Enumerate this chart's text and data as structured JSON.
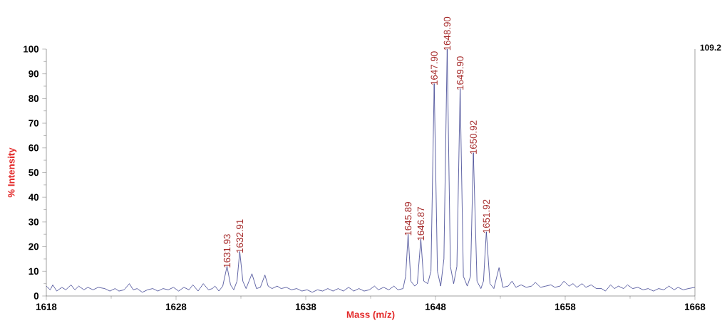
{
  "chart_data": {
    "type": "line",
    "xlabel": "Mass (m/z)",
    "ylabel": "% Intensity",
    "xlim": [
      1618,
      1668
    ],
    "ylim": [
      0,
      100
    ],
    "xticks": [
      1618,
      1628,
      1638,
      1648,
      1658,
      1668
    ],
    "yticks": [
      0,
      10,
      20,
      30,
      40,
      50,
      60,
      70,
      80,
      90,
      100
    ],
    "series": [
      {
        "color": "#3a3f8f",
        "x": [
          1618,
          1618.3,
          1618.5,
          1618.8,
          1619.2,
          1619.5,
          1619.9,
          1620.2,
          1620.5,
          1620.9,
          1621.2,
          1621.6,
          1622.0,
          1622.5,
          1622.9,
          1623.3,
          1623.6,
          1624.0,
          1624.4,
          1624.7,
          1625.0,
          1625.4,
          1625.8,
          1626.2,
          1626.6,
          1627.0,
          1627.4,
          1627.8,
          1628.2,
          1628.6,
          1629.0,
          1629.3,
          1629.7,
          1630.1,
          1630.5,
          1630.8,
          1631.0,
          1631.3,
          1631.6,
          1631.93,
          1632.2,
          1632.45,
          1632.7,
          1632.91,
          1633.15,
          1633.4,
          1633.85,
          1634.2,
          1634.5,
          1634.85,
          1635.1,
          1635.4,
          1635.8,
          1636.1,
          1636.5,
          1636.9,
          1637.3,
          1637.7,
          1638.1,
          1638.5,
          1638.9,
          1639.3,
          1639.7,
          1640.1,
          1640.5,
          1640.9,
          1641.3,
          1641.7,
          1642.1,
          1642.5,
          1642.9,
          1643.3,
          1643.6,
          1644.0,
          1644.4,
          1644.8,
          1645.1,
          1645.5,
          1645.7,
          1645.89,
          1646.1,
          1646.4,
          1646.6,
          1646.87,
          1647.1,
          1647.4,
          1647.65,
          1647.9,
          1648.15,
          1648.4,
          1648.65,
          1648.9,
          1649.15,
          1649.4,
          1649.65,
          1649.9,
          1650.15,
          1650.45,
          1650.7,
          1650.92,
          1651.2,
          1651.5,
          1651.7,
          1651.92,
          1652.2,
          1652.5,
          1652.9,
          1653.2,
          1653.6,
          1653.9,
          1654.2,
          1654.6,
          1655.0,
          1655.4,
          1655.7,
          1656.1,
          1656.5,
          1656.9,
          1657.2,
          1657.6,
          1657.9,
          1658.3,
          1658.6,
          1658.9,
          1659.3,
          1659.6,
          1660.0,
          1660.4,
          1660.8,
          1661.1,
          1661.5,
          1661.8,
          1662.1,
          1662.5,
          1662.8,
          1663.2,
          1663.6,
          1664.0,
          1664.4,
          1664.8,
          1665.2,
          1665.6,
          1666.0,
          1666.4,
          1666.7,
          1667.1,
          1667.5,
          1668
        ],
        "values": [
          4,
          2.5,
          4.5,
          2,
          3.5,
          2.5,
          4.5,
          2.5,
          4,
          2.5,
          3.5,
          2.5,
          3.5,
          3,
          2,
          3,
          2,
          2.5,
          5,
          2.5,
          3,
          1.5,
          2.5,
          3,
          2,
          3,
          2.5,
          3.5,
          2,
          3.5,
          2.5,
          4.5,
          2,
          5,
          2.5,
          3,
          4,
          2,
          4,
          12,
          4.5,
          2.5,
          6,
          18,
          6,
          3,
          9,
          3,
          3.5,
          8.5,
          4,
          3,
          4,
          3,
          3.5,
          2.5,
          3,
          2,
          2.5,
          1.5,
          2.5,
          2,
          3,
          2,
          3,
          2,
          3.5,
          2,
          3,
          2,
          2.5,
          4,
          2.5,
          3.5,
          2.5,
          4,
          2.5,
          3,
          8,
          25,
          6,
          4,
          5,
          23,
          6,
          5,
          10,
          86,
          10,
          4,
          15,
          100,
          12,
          5,
          12,
          84,
          8,
          4,
          8,
          58,
          6,
          3,
          6,
          26,
          5,
          3,
          11.5,
          3.5,
          4,
          6,
          3.5,
          4.5,
          3.5,
          4,
          5.5,
          3.5,
          4,
          4.5,
          3.5,
          4,
          6,
          4,
          5,
          3.5,
          5,
          3.5,
          4.5,
          3,
          3,
          2,
          4.5,
          3,
          4,
          3,
          4.5,
          3,
          3.5,
          2.5,
          3,
          2,
          3,
          2.5,
          4,
          2.5,
          3.5,
          2.5,
          3,
          3.5
        ]
      }
    ],
    "annotations": [
      {
        "text": "1631.93",
        "x": 1631.93,
        "y": 12
      },
      {
        "text": "1632.91",
        "x": 1632.91,
        "y": 18
      },
      {
        "text": "1645.89",
        "x": 1645.89,
        "y": 25
      },
      {
        "text": "1646.87",
        "x": 1646.87,
        "y": 23
      },
      {
        "text": "1647.90",
        "x": 1647.9,
        "y": 86
      },
      {
        "text": "1648.90",
        "x": 1648.9,
        "y": 100
      },
      {
        "text": "1649.90",
        "x": 1649.9,
        "y": 84
      },
      {
        "text": "1650.92",
        "x": 1650.92,
        "y": 58
      },
      {
        "text": "1651.92",
        "x": 1651.92,
        "y": 26
      },
      "109.2"
    ]
  }
}
